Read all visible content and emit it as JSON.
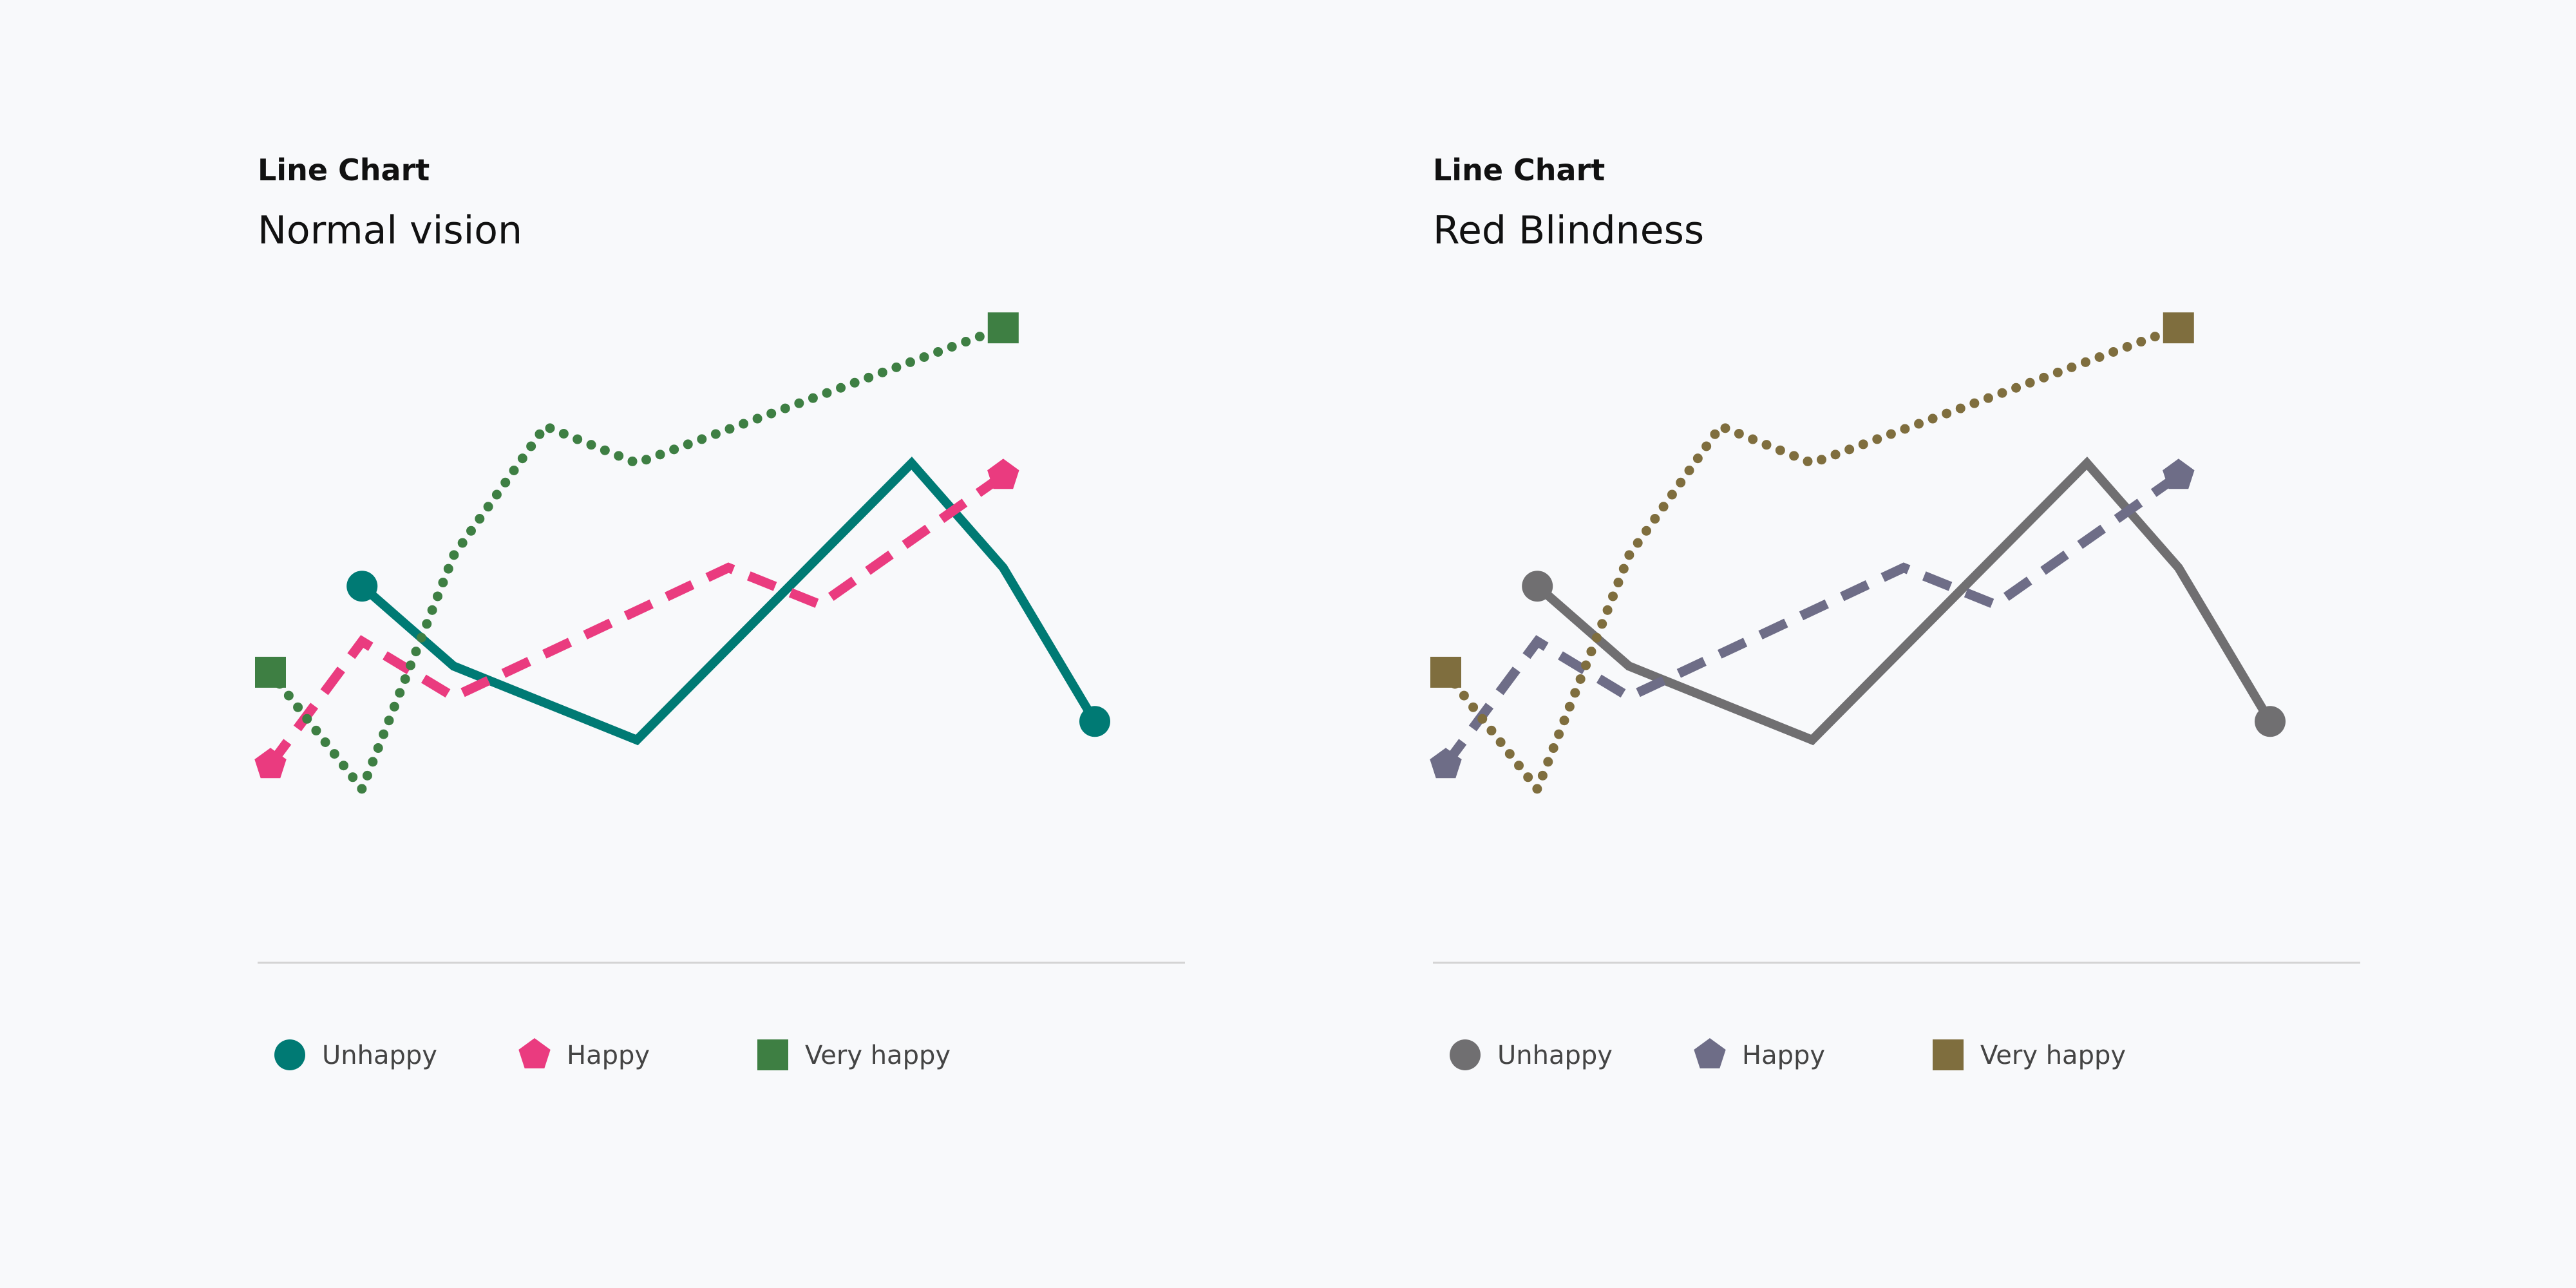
{
  "chart_data": [
    {
      "type": "line",
      "label": "Line Chart",
      "title": "Normal vision",
      "x": [
        0,
        1,
        2,
        3,
        4,
        5,
        6,
        7,
        8,
        9
      ],
      "series": [
        {
          "name": "Unhappy",
          "values": [
            null,
            5.6,
            4.3,
            null,
            3.1,
            null,
            null,
            7.6,
            5.9,
            3.4
          ],
          "color": "#007a74",
          "dash": "solid",
          "marker": "circle"
        },
        {
          "name": "Happy",
          "values": [
            2.7,
            4.7,
            3.8,
            null,
            null,
            5.9,
            5.3,
            null,
            7.4,
            null
          ],
          "color": "#ea3b7f",
          "dash": "dashed",
          "marker": "pentagon"
        },
        {
          "name": "Very happy",
          "values": [
            4.2,
            2.3,
            6.1,
            8.2,
            7.6,
            null,
            null,
            null,
            9.8,
            null
          ],
          "color": "#3e7f43",
          "dash": "dotted",
          "marker": "square"
        }
      ],
      "legend": [
        {
          "label": "Unhappy",
          "marker": "circle",
          "color": "#007a74"
        },
        {
          "label": "Happy",
          "marker": "pentagon",
          "color": "#ea3b7f"
        },
        {
          "label": "Very happy",
          "marker": "square",
          "color": "#3e7f43"
        }
      ],
      "grid": false,
      "legend_position": "bottom"
    },
    {
      "type": "line",
      "label": "Line Chart",
      "title": "Red Blindness",
      "x": [
        0,
        1,
        2,
        3,
        4,
        5,
        6,
        7,
        8,
        9
      ],
      "series": [
        {
          "name": "Unhappy",
          "values": [
            null,
            5.6,
            4.3,
            null,
            3.1,
            null,
            null,
            7.6,
            5.9,
            3.4
          ],
          "color": "#706f71",
          "dash": "solid",
          "marker": "circle"
        },
        {
          "name": "Happy",
          "values": [
            2.7,
            4.7,
            3.8,
            null,
            null,
            5.9,
            5.3,
            null,
            7.4,
            null
          ],
          "color": "#6e6d87",
          "dash": "dashed",
          "marker": "pentagon"
        },
        {
          "name": "Very happy",
          "values": [
            4.2,
            2.3,
            6.1,
            8.2,
            7.6,
            null,
            null,
            null,
            9.8,
            null
          ],
          "color": "#7f6e3e",
          "dash": "dotted",
          "marker": "square"
        }
      ],
      "legend": [
        {
          "label": "Unhappy",
          "marker": "circle",
          "color": "#706f71"
        },
        {
          "label": "Happy",
          "marker": "pentagon",
          "color": "#6e6d87"
        },
        {
          "label": "Very happy",
          "marker": "square",
          "color": "#7f6e3e"
        }
      ],
      "grid": false,
      "legend_position": "bottom"
    }
  ]
}
